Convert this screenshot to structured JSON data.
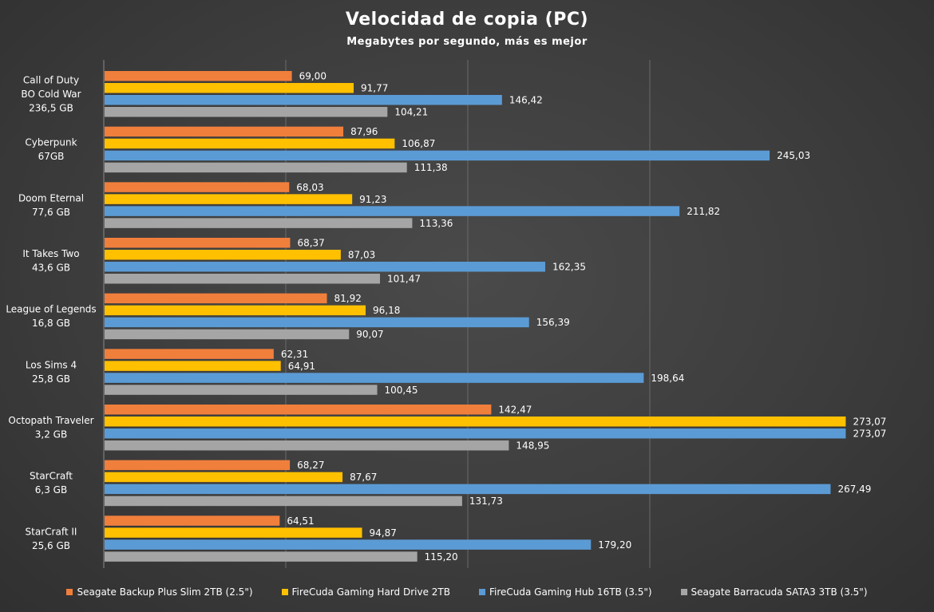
{
  "chart_data": {
    "type": "bar",
    "orientation": "horizontal",
    "title": "Velocidad de copia (PC)",
    "subtitle": "Megabytes por segundo, más es mejor",
    "xlim": [
      0,
      300
    ],
    "grid": true,
    "legend_position": "bottom",
    "categories": [
      [
        "Call of Duty",
        "BO Cold War",
        "236,5 GB"
      ],
      [
        "Cyberpunk",
        "67GB"
      ],
      [
        "Doom Eternal",
        "77,6 GB"
      ],
      [
        "It Takes Two",
        "43,6 GB"
      ],
      [
        "League of Legends",
        "16,8 GB"
      ],
      [
        "Los Sims 4",
        "25,8 GB"
      ],
      [
        "Octopath Traveler",
        "3,2 GB"
      ],
      [
        "StarCraft",
        "6,3 GB"
      ],
      [
        "StarCraft II",
        "25,6 GB"
      ]
    ],
    "series": [
      {
        "name": "Seagate Backup Plus Slim 2TB (2.5\")",
        "color": "#f07f3c",
        "values": [
          69.0,
          87.96,
          68.03,
          68.37,
          81.92,
          62.31,
          142.47,
          68.27,
          64.51
        ],
        "labels": [
          "69,00",
          "87,96",
          "68,03",
          "68,37",
          "81,92",
          "62,31",
          "142,47",
          "68,27",
          "64,51"
        ]
      },
      {
        "name": "FireCuda Gaming Hard Drive 2TB",
        "color": "#ffc000",
        "values": [
          91.77,
          106.87,
          91.23,
          87.03,
          96.18,
          64.91,
          273.07,
          87.67,
          94.87
        ],
        "labels": [
          "91,77",
          "106,87",
          "91,23",
          "87,03",
          "96,18",
          "64,91",
          "273,07",
          "87,67",
          "94,87"
        ]
      },
      {
        "name": "FireCuda Gaming Hub 16TB (3.5\")",
        "color": "#5b9bd5",
        "values": [
          146.42,
          245.03,
          211.82,
          162.35,
          156.39,
          198.64,
          273.07,
          267.49,
          179.2
        ],
        "labels": [
          "146,42",
          "245,03",
          "211,82",
          "162,35",
          "156,39",
          "198,64",
          "273,07",
          "267,49",
          "179,20"
        ]
      },
      {
        "name": "Seagate Barracuda SATA3 3TB (3.5\")",
        "color": "#a5a5a5",
        "values": [
          104.21,
          111.38,
          113.36,
          101.47,
          90.07,
          100.45,
          148.95,
          131.73,
          115.2
        ],
        "labels": [
          "104,21",
          "111,38",
          "113,36",
          "101,47",
          "90,07",
          "100,45",
          "148,95",
          "131,73",
          "115,20"
        ]
      }
    ]
  }
}
